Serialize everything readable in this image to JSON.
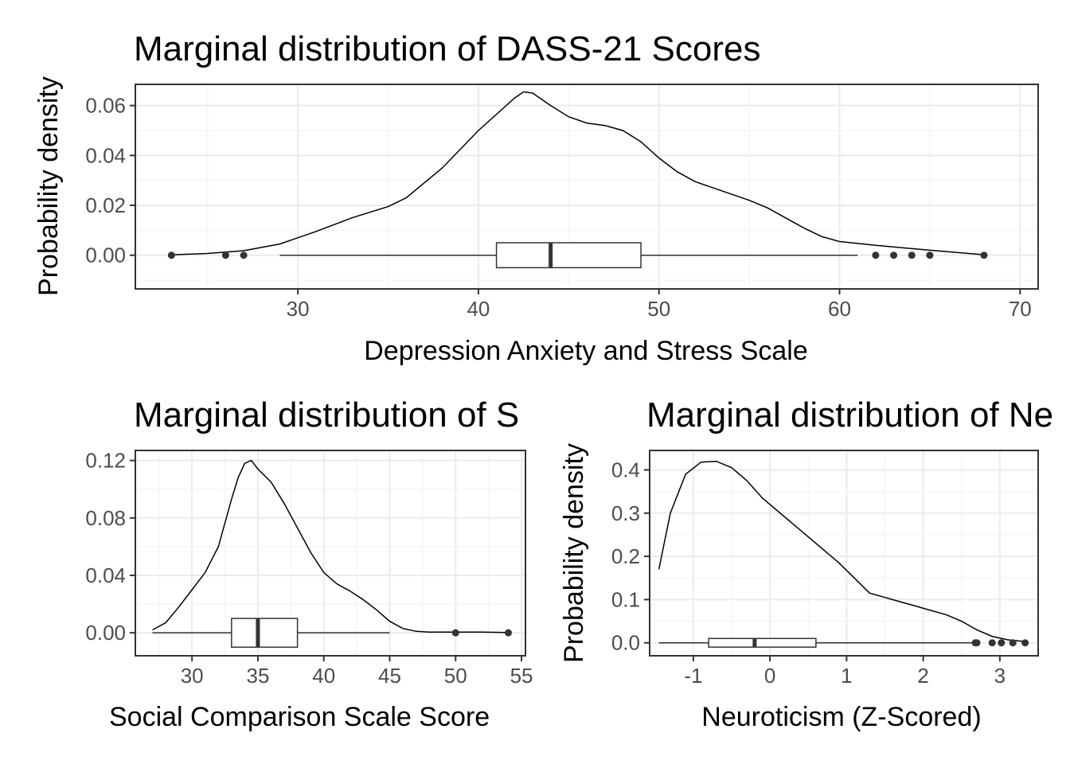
{
  "chart_data": [
    {
      "type": "density",
      "title": "Marginal distribution of DASS-21 Scores",
      "xlabel": "Depression Anxiety and Stress Scale",
      "ylabel": "Probability density",
      "xlim": [
        21,
        71
      ],
      "ylim": [
        -0.0135,
        0.0685
      ],
      "x_ticks": [
        30,
        40,
        50,
        60,
        70
      ],
      "x_tick_labels": [
        "30",
        "40",
        "50",
        "60",
        "70"
      ],
      "y_ticks": [
        0,
        0.02,
        0.04,
        0.06
      ],
      "y_tick_labels": [
        "0.00",
        "0.02",
        "0.04",
        "0.06"
      ],
      "density_curve": {
        "x": [
          23,
          25,
          27,
          29,
          31,
          33,
          35,
          36,
          38,
          40,
          42,
          42.5,
          43,
          44,
          45,
          46,
          47,
          48,
          49,
          50,
          51,
          52,
          53,
          55,
          56,
          58,
          59,
          60,
          62,
          65,
          68
        ],
        "y": [
          0.0002,
          0.0007,
          0.0018,
          0.0045,
          0.0095,
          0.015,
          0.0195,
          0.023,
          0.035,
          0.05,
          0.063,
          0.0655,
          0.065,
          0.06,
          0.0555,
          0.053,
          0.052,
          0.05,
          0.0455,
          0.039,
          0.0335,
          0.0295,
          0.027,
          0.022,
          0.019,
          0.011,
          0.0075,
          0.0055,
          0.004,
          0.002,
          0.0002
        ]
      },
      "boxplot": {
        "whisker_low": 29,
        "q1": 41,
        "median": 44,
        "q3": 49,
        "whisker_high": 61,
        "box_height": 0.01
      },
      "outliers": [
        23,
        26,
        27,
        62,
        63,
        64,
        65,
        68
      ]
    },
    {
      "type": "density",
      "title": "Marginal distribution of S",
      "xlabel": "Social Comparison Scale Score",
      "ylabel": "Probability density",
      "xlim": [
        25.7,
        55.3
      ],
      "ylim": [
        -0.016,
        0.127
      ],
      "x_ticks": [
        30,
        35,
        40,
        45,
        50,
        55
      ],
      "x_tick_labels": [
        "30",
        "35",
        "40",
        "45",
        "50",
        "55"
      ],
      "y_ticks": [
        0,
        0.04,
        0.08,
        0.12
      ],
      "y_tick_labels": [
        "0.00",
        "0.04",
        "0.08",
        "0.12"
      ],
      "density_curve": {
        "x": [
          27,
          28,
          29,
          30,
          31,
          32,
          33,
          33.5,
          34,
          34.5,
          35,
          36,
          37,
          38,
          39,
          40,
          41,
          42,
          43,
          44,
          45,
          46,
          47,
          48,
          50,
          52,
          54
        ],
        "y": [
          0.002,
          0.007,
          0.018,
          0.03,
          0.042,
          0.06,
          0.093,
          0.108,
          0.118,
          0.12,
          0.114,
          0.105,
          0.09,
          0.073,
          0.056,
          0.042,
          0.034,
          0.029,
          0.023,
          0.016,
          0.008,
          0.003,
          0.001,
          0.0005,
          0.0005,
          0.0005,
          0.0002
        ]
      },
      "boxplot": {
        "whisker_low": 27,
        "q1": 33,
        "median": 35,
        "q3": 38,
        "whisker_high": 45,
        "box_height": 0.02
      },
      "outliers": [
        50,
        54
      ]
    },
    {
      "type": "density",
      "title": "Marginal distribution of Ne",
      "xlabel": "Neuroticism (Z-Scored)",
      "ylabel": "Probability density",
      "xlim": [
        -1.57,
        3.5
      ],
      "ylim": [
        -0.03,
        0.445
      ],
      "x_ticks": [
        -1,
        0,
        1,
        2,
        3
      ],
      "x_tick_labels": [
        "-1",
        "0",
        "1",
        "2",
        "3"
      ],
      "y_ticks": [
        0,
        0.1,
        0.2,
        0.3,
        0.4
      ],
      "y_tick_labels": [
        "0.0",
        "0.1",
        "0.2",
        "0.3",
        "0.4"
      ],
      "density_curve": {
        "x": [
          -1.45,
          -1.3,
          -1.1,
          -0.9,
          -0.7,
          -0.5,
          -0.3,
          -0.1,
          0.1,
          0.3,
          0.5,
          0.7,
          0.9,
          1.1,
          1.3,
          1.5,
          1.7,
          1.9,
          2.1,
          2.3,
          2.5,
          2.7,
          2.9,
          3.1,
          3.33
        ],
        "y": [
          0.17,
          0.3,
          0.39,
          0.418,
          0.42,
          0.405,
          0.375,
          0.335,
          0.305,
          0.275,
          0.245,
          0.215,
          0.185,
          0.15,
          0.115,
          0.105,
          0.095,
          0.085,
          0.075,
          0.065,
          0.05,
          0.03,
          0.015,
          0.007,
          0.003
        ]
      },
      "boxplot": {
        "whisker_low": -1.45,
        "q1": -0.8,
        "median": -0.2,
        "q3": 0.6,
        "whisker_high": 2.65,
        "box_height": 0.02
      },
      "outliers": [
        2.68,
        2.7,
        2.9,
        3.02,
        3.17,
        3.33
      ]
    }
  ]
}
